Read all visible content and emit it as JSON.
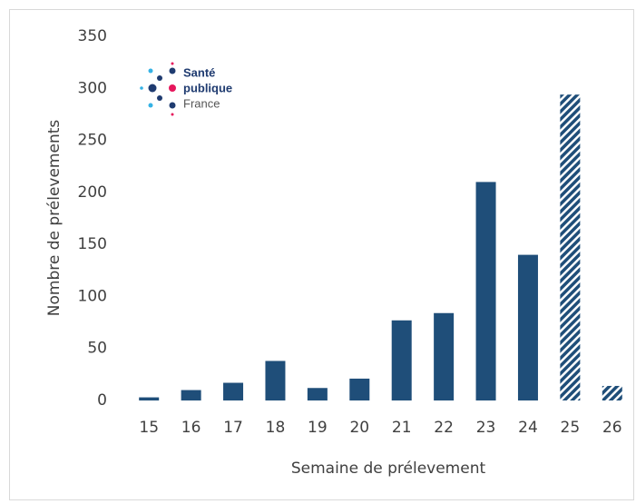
{
  "chart_data": {
    "type": "bar",
    "x_label": "Semaine de prélevement",
    "y_label": "Nombre de prélevements",
    "categories": [
      "15",
      "16",
      "17",
      "18",
      "19",
      "20",
      "21",
      "22",
      "23",
      "24",
      "25",
      "26"
    ],
    "values": [
      3,
      10,
      17,
      38,
      12,
      21,
      77,
      84,
      210,
      140,
      294,
      14
    ],
    "hatched": [
      false,
      false,
      false,
      false,
      false,
      false,
      false,
      false,
      false,
      false,
      true,
      true
    ],
    "color": "#1f4e79",
    "ylim": [
      0,
      350
    ],
    "yticks": [
      0,
      50,
      100,
      150,
      200,
      250,
      300,
      350
    ],
    "grid": false,
    "logo": {
      "lines": [
        "Santé",
        "publique",
        "France"
      ]
    }
  }
}
